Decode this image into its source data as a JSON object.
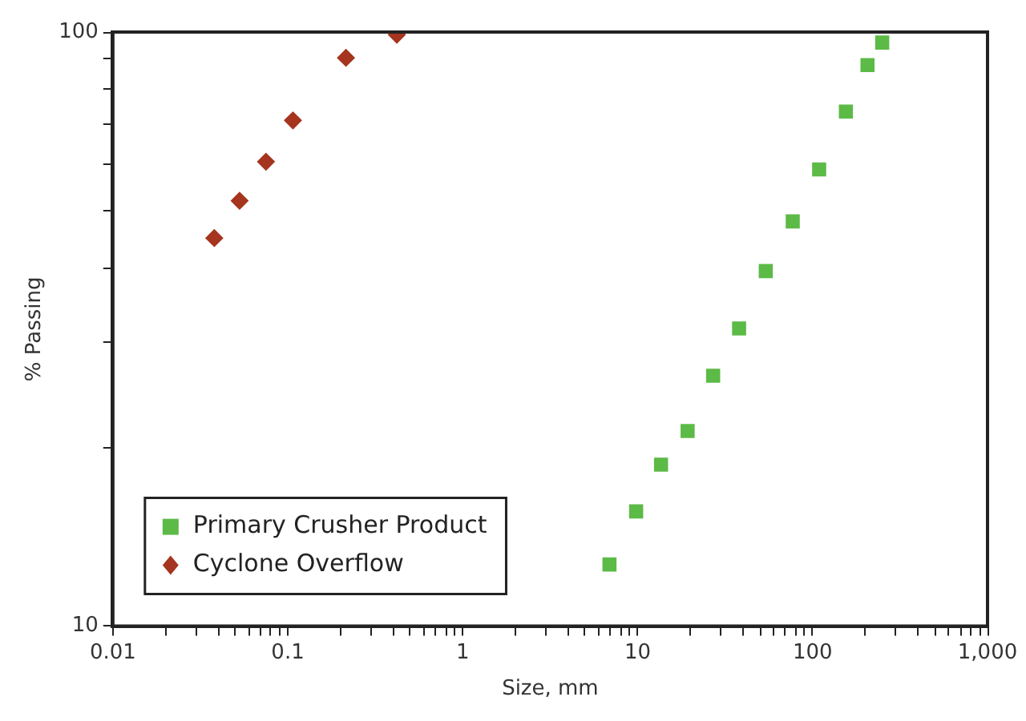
{
  "chart_data": {
    "type": "scatter",
    "xlabel": "Size, mm",
    "ylabel": "% Passing",
    "log": "xy",
    "grid": false,
    "legend": "bottom left",
    "xlim": [
      0.01,
      1000
    ],
    "ylim": [
      10,
      100
    ],
    "xticks": [
      0.01,
      {
        "value": 0.02,
        "label": null
      },
      {
        "value": 0.03,
        "label": null
      },
      {
        "value": 0.04,
        "label": null
      },
      {
        "value": 0.05,
        "label": null
      },
      {
        "value": 0.06,
        "label": null
      },
      {
        "value": 0.07,
        "label": null
      },
      {
        "value": 0.08,
        "label": null
      },
      {
        "value": 0.09,
        "label": null
      },
      0.1,
      {
        "value": 0.2,
        "label": null
      },
      {
        "value": 0.3,
        "label": null
      },
      {
        "value": 0.4,
        "label": null
      },
      {
        "value": 0.5,
        "label": null
      },
      {
        "value": 0.6,
        "label": null
      },
      {
        "value": 0.7,
        "label": null
      },
      {
        "value": 0.8,
        "label": null
      },
      {
        "value": 0.9,
        "label": null
      },
      1,
      {
        "value": 2,
        "label": null
      },
      {
        "value": 3,
        "label": null
      },
      {
        "value": 4,
        "label": null
      },
      {
        "value": 5,
        "label": null
      },
      {
        "value": 6,
        "label": null
      },
      {
        "value": 7,
        "label": null
      },
      {
        "value": 8,
        "label": null
      },
      {
        "value": 9,
        "label": null
      },
      10,
      {
        "value": 20,
        "label": null
      },
      {
        "value": 30,
        "label": null
      },
      {
        "value": 40,
        "label": null
      },
      {
        "value": 50,
        "label": null
      },
      {
        "value": 60,
        "label": null
      },
      {
        "value": 70,
        "label": null
      },
      {
        "value": 80,
        "label": null
      },
      {
        "value": 90,
        "label": null
      },
      100,
      {
        "value": 200,
        "label": null
      },
      {
        "value": 300,
        "label": null
      },
      {
        "value": 400,
        "label": null
      },
      {
        "value": 500,
        "label": null
      },
      {
        "value": 600,
        "label": null
      },
      {
        "value": 700,
        "label": null
      },
      {
        "value": 800,
        "label": null
      },
      {
        "value": 900,
        "label": null
      },
      {
        "value": 1000,
        "label": "1,000"
      }
    ],
    "yticks": [
      10,
      {
        "value": 20,
        "label": null
      },
      {
        "value": 30,
        "label": null
      },
      {
        "value": 40,
        "label": null
      },
      {
        "value": 50,
        "label": null
      },
      {
        "value": 60,
        "label": null
      },
      {
        "value": 70,
        "label": null
      },
      {
        "value": 80,
        "label": null
      },
      {
        "value": 90,
        "label": null
      },
      100
    ],
    "series": [
      {
        "name": "Primary Crusher Product",
        "color": "#5cba47",
        "marker": "square",
        "x": [
          6.9,
          9.8,
          13.6,
          19.3,
          27,
          38,
          54,
          77,
          109,
          155,
          206,
          250
        ],
        "values": [
          12.7,
          15.6,
          18.7,
          21.3,
          26.4,
          31.7,
          39.6,
          48,
          58.7,
          73.5,
          88,
          96
        ]
      },
      {
        "name": "Cyclone Overflow",
        "color": "#a5351f",
        "marker": "diamond",
        "x": [
          0.038,
          0.053,
          0.075,
          0.107,
          0.215,
          0.42
        ],
        "values": [
          45,
          52,
          60.5,
          71,
          90.5,
          99
        ]
      }
    ]
  }
}
